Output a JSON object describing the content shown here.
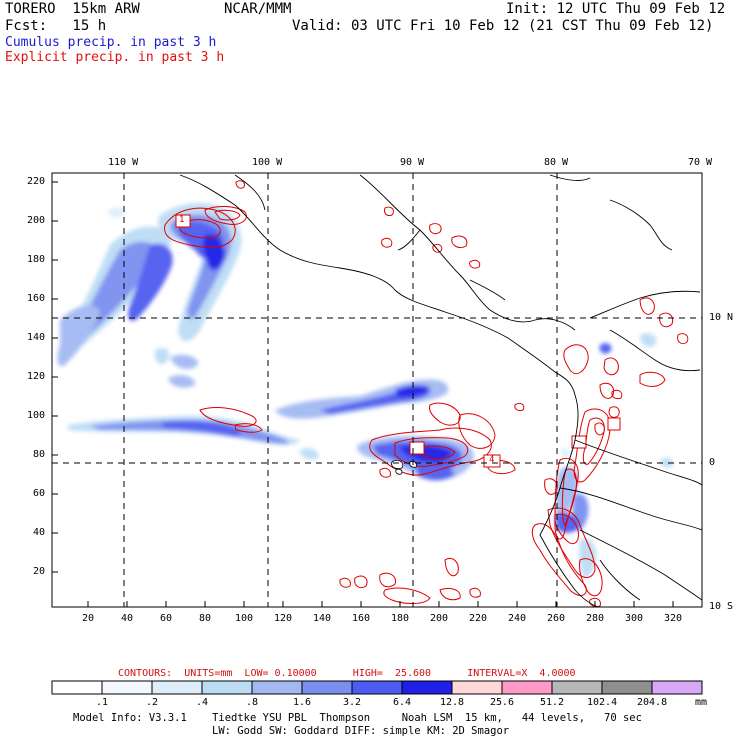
{
  "header": {
    "model_line": "TORERO  15km ARW",
    "org": "NCAR/MMM",
    "init": "Init: 12 UTC Thu 09 Feb 12",
    "fcst": "Fcst:   15 h",
    "valid": "Valid: 03 UTC Fri 10 Feb 12 (21 CST Thu 09 Feb 12)",
    "cumulus": "Cumulus precip. in past 3 h",
    "explicit": "Explicit precip. in past 3 h"
  },
  "map": {
    "lon_labels": [
      "110 W",
      "100 W",
      "90 W",
      "80 W",
      "70 W"
    ],
    "lat_labels": [
      "10 N",
      "0",
      "10 S"
    ],
    "y_ticks": [
      "220",
      "200",
      "180",
      "160",
      "140",
      "120",
      "100",
      "80",
      "60",
      "40",
      "20"
    ],
    "x_ticks": [
      "20",
      "40",
      "60",
      "80",
      "100",
      "120",
      "140",
      "160",
      "180",
      "200",
      "220",
      "240",
      "260",
      "280",
      "300",
      "320"
    ],
    "line_color": "#000000",
    "explicit_color": "#e00000",
    "contour_marks": [
      "1",
      "4"
    ]
  },
  "contour_info": {
    "text": "CONTOURS:  UNITS=mm  LOW= 0.10000      HIGH=  25.600      INTERVAL=X  4.0000"
  },
  "legend": {
    "unit": "mm",
    "labels": [
      ".1",
      ".2",
      ".4",
      ".8",
      "1.6",
      "3.2",
      "6.4",
      "12.8",
      "25.6",
      "51.2",
      "102.4",
      "204.8"
    ],
    "colors": [
      "#ffffff",
      "#f2f8fd",
      "#ddeefa",
      "#bcdcf4",
      "#a3b9f2",
      "#7a8ff0",
      "#4d5cf0",
      "#1f1fe6",
      "#ffd7d7",
      "#ff99c8",
      "#b7b7b7",
      "#8f8f8f",
      "#d8a8f8"
    ]
  },
  "footer": {
    "line1": "Model Info: V3.3.1    Tiedtke YSU PBL  Thompson     Noah LSM  15 km,   44 levels,   70 sec",
    "line2": "LW: Godd SW: Goddard DIFF: simple KM: 2D Smagor"
  }
}
